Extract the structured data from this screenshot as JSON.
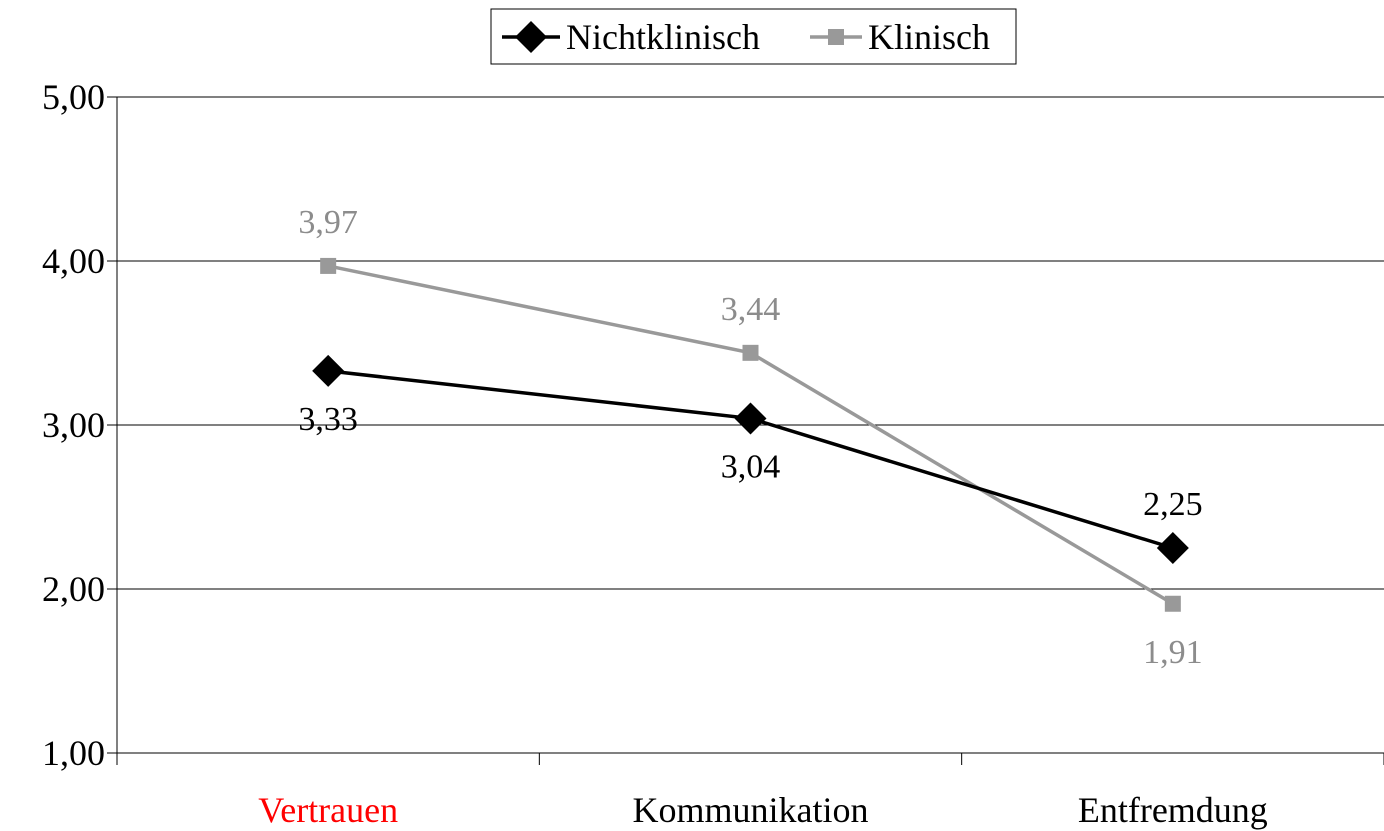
{
  "chart_data": {
    "type": "line",
    "categories": [
      "Vertrauen",
      "Kommunikation",
      "Entfremdung"
    ],
    "category_label_colors": [
      "#ff0000",
      "#000000",
      "#000000"
    ],
    "y_tick_labels": [
      "1,00",
      "2,00",
      "3,00",
      "4,00",
      "5,00"
    ],
    "y_ticks": [
      1,
      2,
      3,
      4,
      5
    ],
    "ylim": [
      1,
      5
    ],
    "grid": true,
    "legend_position": "top-center",
    "series": [
      {
        "name": "Nichtklinisch",
        "values": [
          3.33,
          3.04,
          2.25
        ],
        "labels": [
          "3,33",
          "3,04",
          "2,25"
        ],
        "label_positions": [
          "below",
          "below",
          "above"
        ],
        "color": "#000000",
        "label_color": "#000000",
        "marker": "diamond"
      },
      {
        "name": "Klinisch",
        "values": [
          3.97,
          3.44,
          1.91
        ],
        "labels": [
          "3,97",
          "3,44",
          "1,91"
        ],
        "label_positions": [
          "above",
          "above",
          "below"
        ],
        "color": "#999999",
        "label_color": "#8c8c8c",
        "marker": "square"
      }
    ]
  }
}
